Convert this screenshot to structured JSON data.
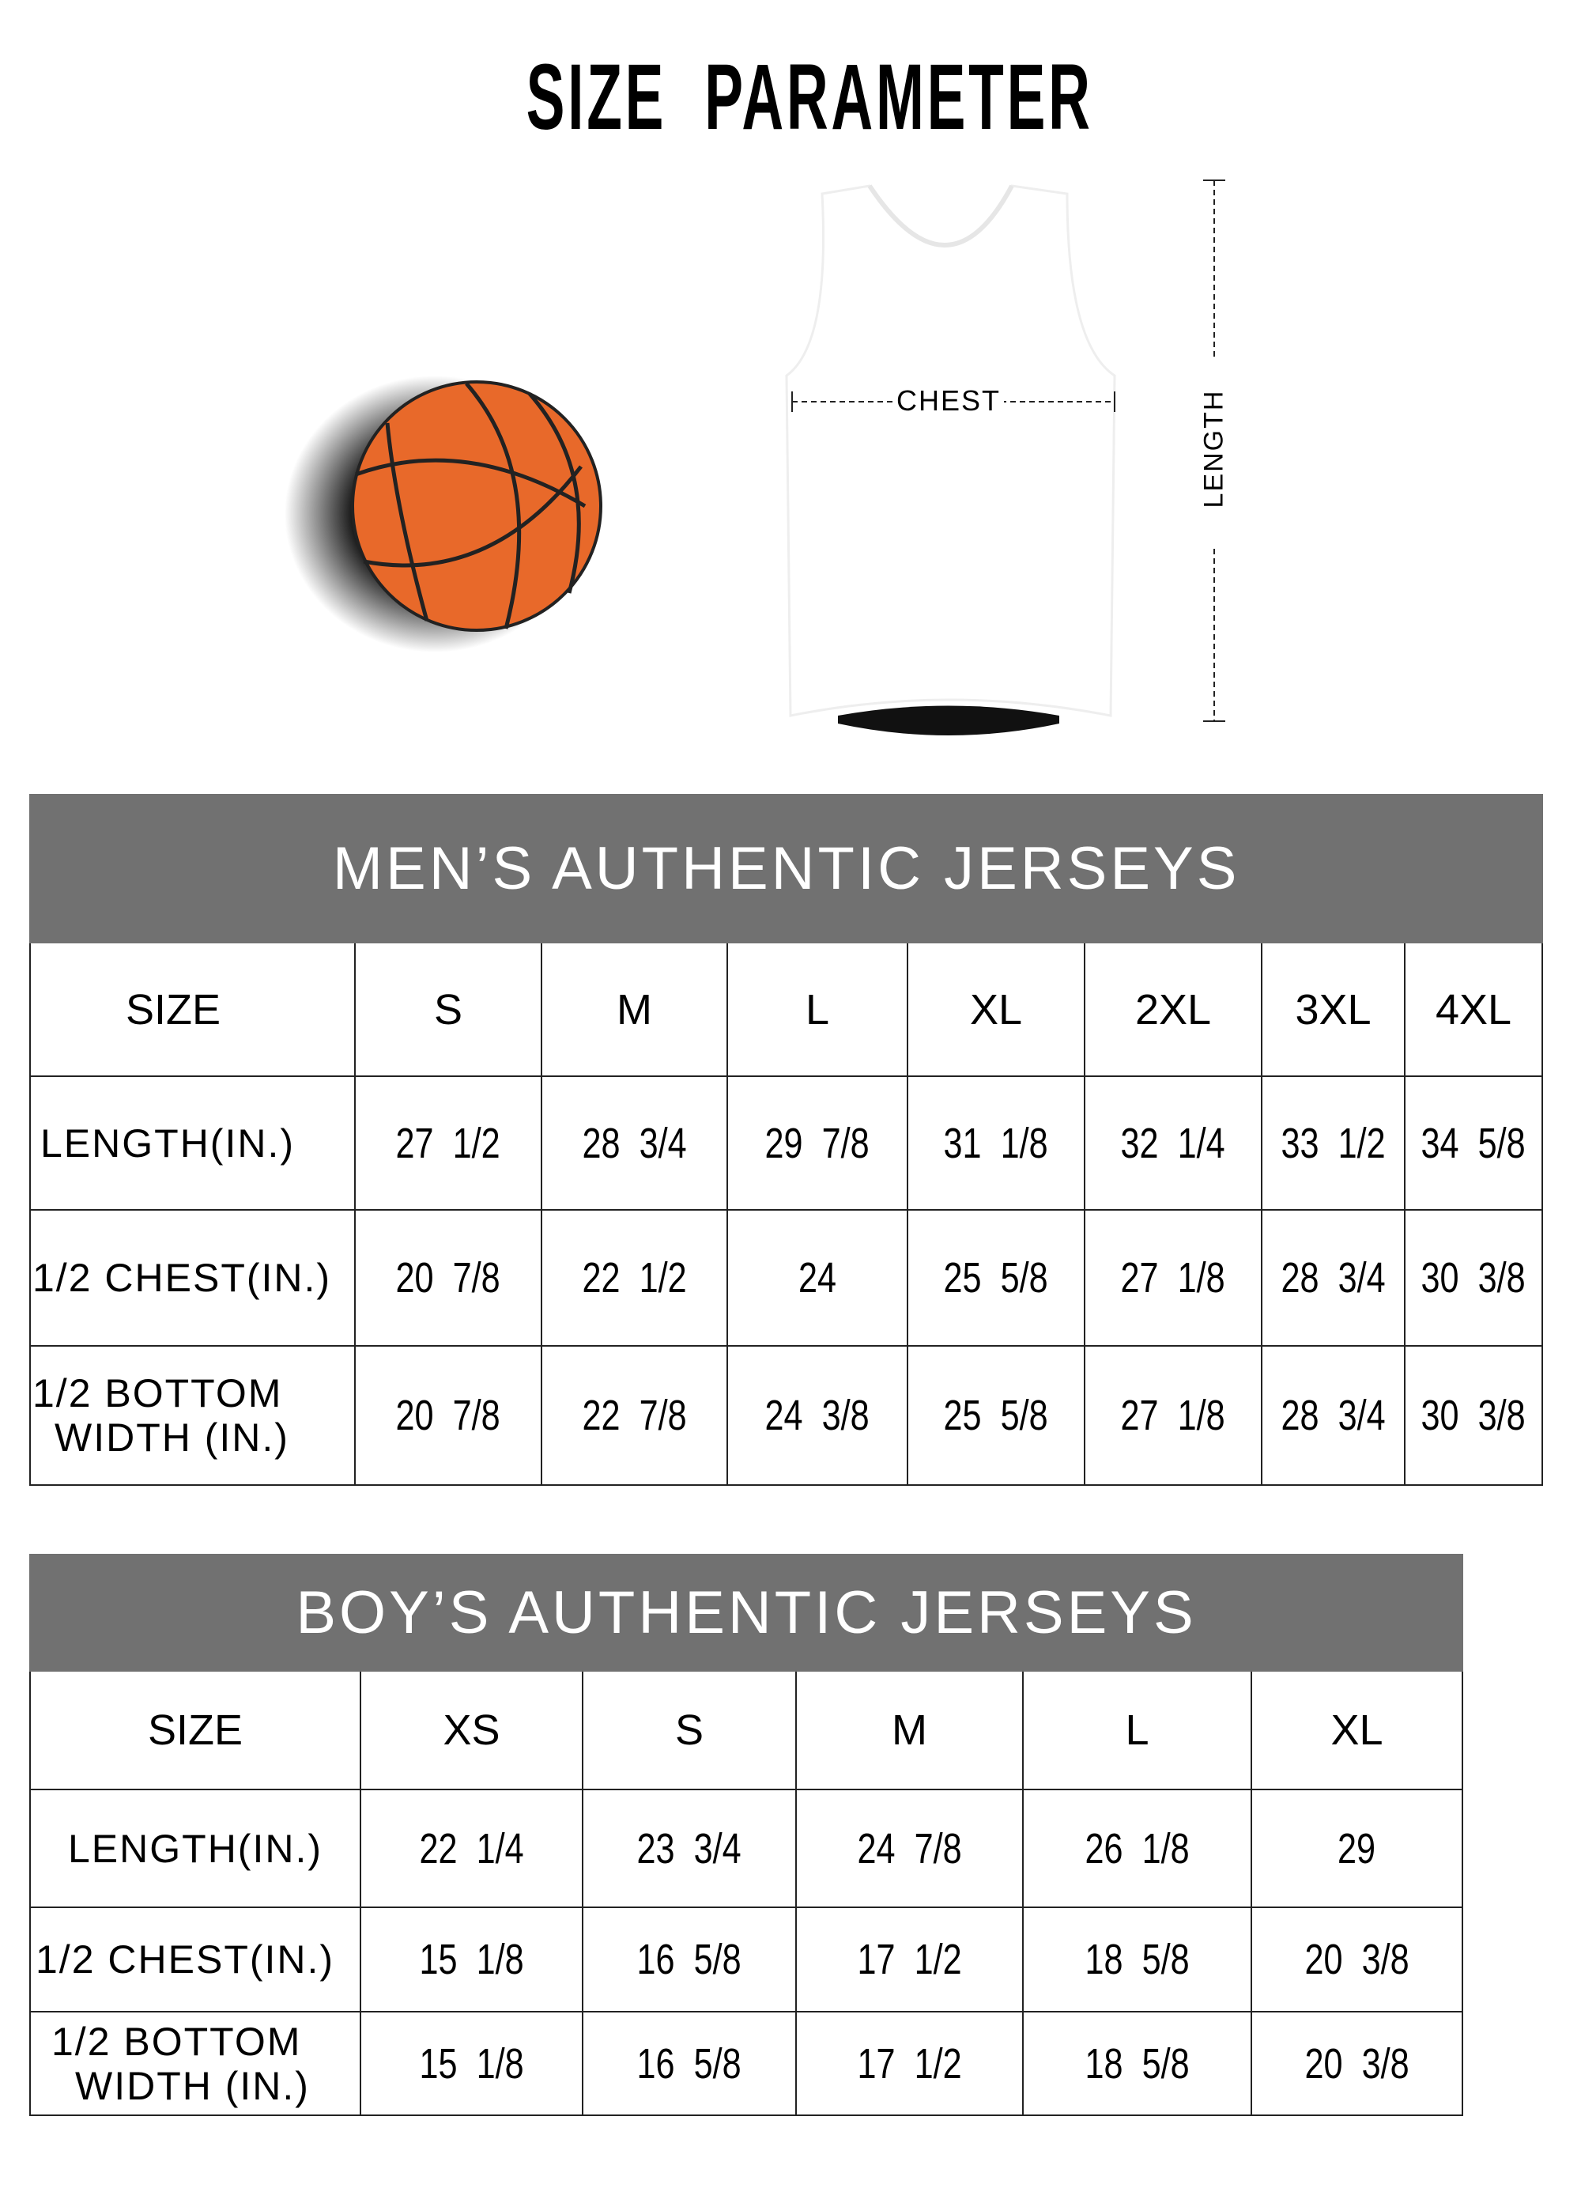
{
  "title": "SIZE  PARAMETER",
  "illustration": {
    "chest_label": "CHEST",
    "length_label": "LENGTH",
    "ball_color": "#e8692a",
    "header_color": "#717171"
  },
  "mens": {
    "heading": "MEN’S AUTHENTIC JERSEYS",
    "size_label": "SIZE",
    "sizes": [
      "S",
      "M",
      "L",
      "XL",
      "2XL",
      "3XL",
      "4XL"
    ],
    "rows": [
      {
        "label": "LENGTH(IN.)",
        "values": [
          "27  1/2",
          "28  3/4",
          "29  7/8",
          "31  1/8",
          "32  1/4",
          "33  1/2",
          "34  5/8"
        ]
      },
      {
        "label": "1/2 CHEST(IN.)",
        "values": [
          "20  7/8",
          "22  1/2",
          "24",
          "25  5/8",
          "27  1/8",
          "28  3/4",
          "30  3/8"
        ]
      },
      {
        "label": "1/2 BOTTOM WIDTH  (IN.)",
        "label_line1": "1/2 BOTTOM",
        "label_line2": " WIDTH  (IN.)",
        "values": [
          "20  7/8",
          "22  7/8",
          "24  3/8",
          "25  5/8",
          "27  1/8",
          "28  3/4",
          "30  3/8"
        ]
      }
    ]
  },
  "boys": {
    "heading": "BOY’S AUTHENTIC JERSEYS",
    "size_label": "SIZE",
    "sizes": [
      "XS",
      "S",
      "M",
      "L",
      "XL"
    ],
    "rows": [
      {
        "label": "LENGTH(IN.)",
        "values": [
          "22  1/4",
          "23  3/4",
          "24  7/8",
          "26  1/8",
          "29"
        ]
      },
      {
        "label": "1/2 CHEST(IN.)",
        "values": [
          "15  1/8",
          "16  5/8",
          "17  1/2",
          "18  5/8",
          "20  3/8"
        ]
      },
      {
        "label": "1/2 BOTTOM WIDTH  (IN.)",
        "label_line1": "1/2 BOTTOM",
        "label_line2": "WIDTH  (IN.)",
        "values": [
          "15  1/8",
          "16  5/8",
          "17  1/2",
          "18  5/8",
          "20  3/8"
        ]
      }
    ]
  }
}
